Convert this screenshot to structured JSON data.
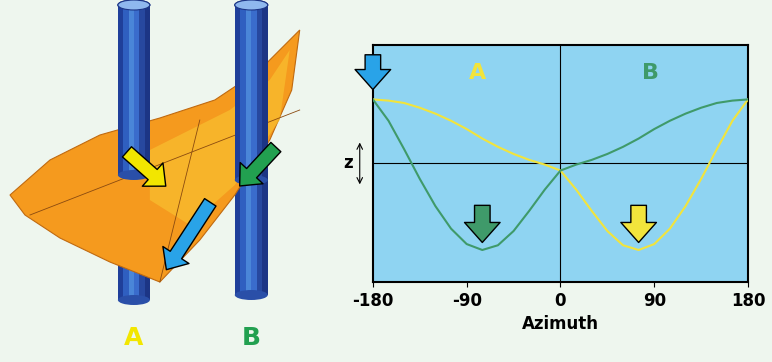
{
  "chart_data": {
    "type": "line",
    "xlabel": "Azimuth",
    "ylabel": "z",
    "x": [
      -180,
      -165,
      -150,
      -135,
      -120,
      -105,
      -90,
      -75,
      -60,
      -45,
      -30,
      -15,
      0,
      15,
      30,
      45,
      60,
      75,
      90,
      105,
      120,
      135,
      150,
      165,
      180
    ],
    "series": [
      {
        "name": "A",
        "color": "#f2e43c",
        "values": [
          0.54,
          0.53,
          0.51,
          0.47,
          0.42,
          0.36,
          0.29,
          0.21,
          0.14,
          0.08,
          0.03,
          -0.01,
          -0.06,
          -0.22,
          -0.4,
          -0.57,
          -0.69,
          -0.73,
          -0.68,
          -0.55,
          -0.36,
          -0.13,
          0.12,
          0.36,
          0.54
        ]
      },
      {
        "name": "B",
        "color": "#3f9a6a",
        "values": [
          0.54,
          0.36,
          0.12,
          -0.13,
          -0.36,
          -0.55,
          -0.68,
          -0.73,
          -0.69,
          -0.57,
          -0.4,
          -0.22,
          -0.06,
          -0.01,
          0.03,
          0.08,
          0.14,
          0.21,
          0.29,
          0.36,
          0.42,
          0.47,
          0.51,
          0.53,
          0.54
        ]
      }
    ],
    "xlim": [
      -180,
      180
    ],
    "xticks": [
      -180,
      -90,
      0,
      90,
      180
    ],
    "ylim": [
      -1,
      1
    ],
    "tick_labels": "x"
  },
  "diagram": {
    "labels": [
      {
        "text": "A",
        "color": "#f2e600"
      },
      {
        "text": "B",
        "color": "#22a050"
      }
    ]
  }
}
